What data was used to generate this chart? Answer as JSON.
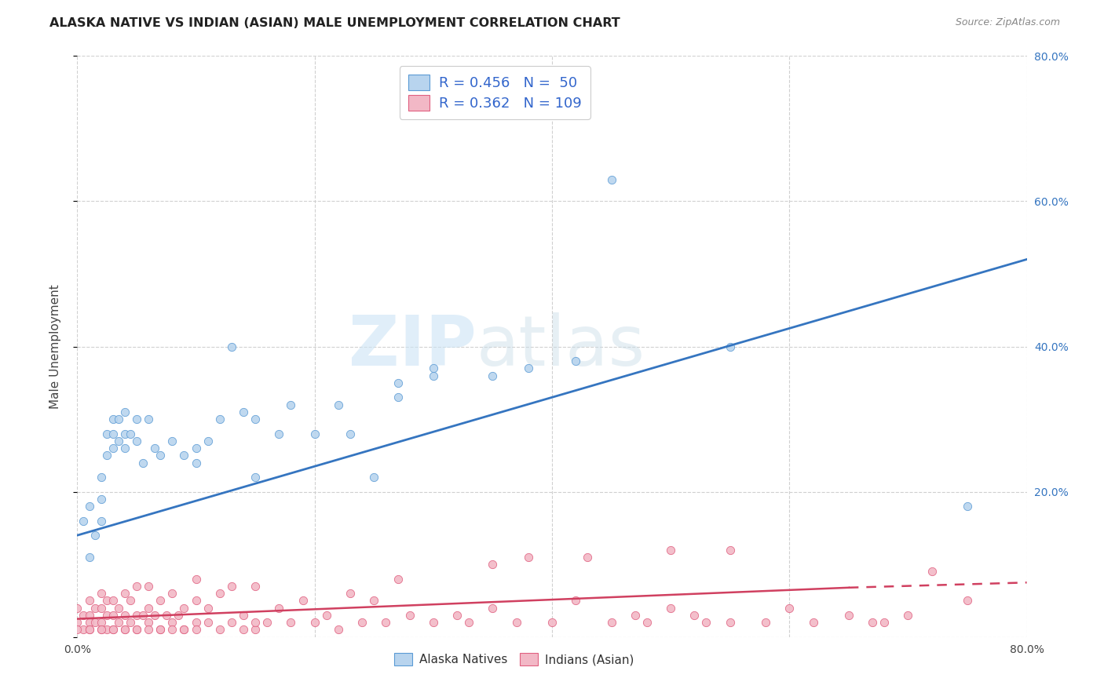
{
  "title": "ALASKA NATIVE VS INDIAN (ASIAN) MALE UNEMPLOYMENT CORRELATION CHART",
  "source": "Source: ZipAtlas.com",
  "ylabel": "Male Unemployment",
  "xlim": [
    0.0,
    0.8
  ],
  "ylim": [
    0.0,
    0.8
  ],
  "xticks": [
    0.0,
    0.2,
    0.4,
    0.6,
    0.8
  ],
  "yticks": [
    0.0,
    0.2,
    0.4,
    0.6,
    0.8
  ],
  "xticklabels": [
    "0.0%",
    "",
    "",
    "",
    "80.0%"
  ],
  "yticklabels_right": [
    "",
    "20.0%",
    "40.0%",
    "60.0%",
    "80.0%"
  ],
  "background_color": "#ffffff",
  "grid_color": "#d0d0d0",
  "watermark_zip": "ZIP",
  "watermark_atlas": "atlas",
  "series": [
    {
      "name": "Alaska Natives",
      "color": "#b8d4ee",
      "edge_color": "#5b9bd5",
      "line_color": "#3575c0",
      "R": 0.456,
      "N": 50,
      "x": [
        0.005,
        0.01,
        0.01,
        0.015,
        0.02,
        0.02,
        0.02,
        0.025,
        0.025,
        0.03,
        0.03,
        0.03,
        0.035,
        0.035,
        0.04,
        0.04,
        0.04,
        0.045,
        0.05,
        0.05,
        0.055,
        0.06,
        0.065,
        0.07,
        0.08,
        0.09,
        0.1,
        0.1,
        0.11,
        0.12,
        0.13,
        0.14,
        0.15,
        0.15,
        0.17,
        0.18,
        0.2,
        0.22,
        0.23,
        0.25,
        0.27,
        0.27,
        0.3,
        0.3,
        0.35,
        0.38,
        0.42,
        0.45,
        0.55,
        0.75
      ],
      "y": [
        0.16,
        0.11,
        0.18,
        0.14,
        0.16,
        0.19,
        0.22,
        0.25,
        0.28,
        0.26,
        0.28,
        0.3,
        0.27,
        0.3,
        0.26,
        0.28,
        0.31,
        0.28,
        0.27,
        0.3,
        0.24,
        0.3,
        0.26,
        0.25,
        0.27,
        0.25,
        0.24,
        0.26,
        0.27,
        0.3,
        0.4,
        0.31,
        0.22,
        0.3,
        0.28,
        0.32,
        0.28,
        0.32,
        0.28,
        0.22,
        0.33,
        0.35,
        0.36,
        0.37,
        0.36,
        0.37,
        0.38,
        0.63,
        0.4,
        0.18
      ],
      "trend_x": [
        0.0,
        0.8
      ],
      "trend_y": [
        0.14,
        0.52
      ],
      "linestyle": "solid"
    },
    {
      "name": "Indians (Asian)",
      "color": "#f2b8c6",
      "edge_color": "#e06080",
      "line_color": "#d04060",
      "R": 0.362,
      "N": 109,
      "x": [
        0.0,
        0.0,
        0.005,
        0.005,
        0.01,
        0.01,
        0.01,
        0.01,
        0.015,
        0.015,
        0.02,
        0.02,
        0.02,
        0.02,
        0.025,
        0.025,
        0.025,
        0.03,
        0.03,
        0.03,
        0.035,
        0.035,
        0.04,
        0.04,
        0.04,
        0.045,
        0.045,
        0.05,
        0.05,
        0.05,
        0.055,
        0.06,
        0.06,
        0.06,
        0.065,
        0.07,
        0.07,
        0.075,
        0.08,
        0.08,
        0.085,
        0.09,
        0.09,
        0.1,
        0.1,
        0.1,
        0.11,
        0.11,
        0.12,
        0.12,
        0.13,
        0.13,
        0.14,
        0.14,
        0.15,
        0.15,
        0.16,
        0.17,
        0.18,
        0.19,
        0.2,
        0.21,
        0.22,
        0.23,
        0.24,
        0.25,
        0.26,
        0.27,
        0.28,
        0.3,
        0.32,
        0.33,
        0.35,
        0.35,
        0.37,
        0.38,
        0.4,
        0.42,
        0.43,
        0.45,
        0.47,
        0.48,
        0.5,
        0.5,
        0.52,
        0.53,
        0.55,
        0.55,
        0.58,
        0.6,
        0.62,
        0.65,
        0.67,
        0.68,
        0.7,
        0.72,
        0.75,
        0.0,
        0.01,
        0.02,
        0.03,
        0.04,
        0.05,
        0.06,
        0.07,
        0.08,
        0.09,
        0.1,
        0.15
      ],
      "y": [
        0.02,
        0.04,
        0.01,
        0.03,
        0.01,
        0.03,
        0.05,
        0.02,
        0.02,
        0.04,
        0.01,
        0.02,
        0.04,
        0.06,
        0.01,
        0.03,
        0.05,
        0.01,
        0.03,
        0.05,
        0.02,
        0.04,
        0.01,
        0.03,
        0.06,
        0.02,
        0.05,
        0.01,
        0.03,
        0.07,
        0.03,
        0.02,
        0.04,
        0.07,
        0.03,
        0.01,
        0.05,
        0.03,
        0.02,
        0.06,
        0.03,
        0.01,
        0.04,
        0.02,
        0.05,
        0.08,
        0.02,
        0.04,
        0.01,
        0.06,
        0.02,
        0.07,
        0.03,
        0.01,
        0.01,
        0.07,
        0.02,
        0.04,
        0.02,
        0.05,
        0.02,
        0.03,
        0.01,
        0.06,
        0.02,
        0.05,
        0.02,
        0.08,
        0.03,
        0.02,
        0.03,
        0.02,
        0.1,
        0.04,
        0.02,
        0.11,
        0.02,
        0.05,
        0.11,
        0.02,
        0.03,
        0.02,
        0.04,
        0.12,
        0.03,
        0.02,
        0.12,
        0.02,
        0.02,
        0.04,
        0.02,
        0.03,
        0.02,
        0.02,
        0.03,
        0.09,
        0.05,
        0.01,
        0.01,
        0.01,
        0.01,
        0.01,
        0.01,
        0.01,
        0.01,
        0.01,
        0.01,
        0.01,
        0.02
      ],
      "trend_x": [
        0.0,
        0.65,
        0.8
      ],
      "trend_y": [
        0.025,
        0.068,
        0.075
      ],
      "linestyle": "solid_then_dashed"
    }
  ],
  "legend_top": {
    "R_values": [
      0.456,
      0.362
    ],
    "N_values": [
      50,
      109
    ],
    "colors": [
      "#b8d4ee",
      "#f2b8c6"
    ],
    "edge_colors": [
      "#5b9bd5",
      "#e06080"
    ],
    "text_color": "#3366cc"
  },
  "legend_bottom": {
    "items": [
      "Alaska Natives",
      "Indians (Asian)"
    ],
    "colors": [
      "#b8d4ee",
      "#f2b8c6"
    ],
    "edge_colors": [
      "#5b9bd5",
      "#e06080"
    ]
  }
}
